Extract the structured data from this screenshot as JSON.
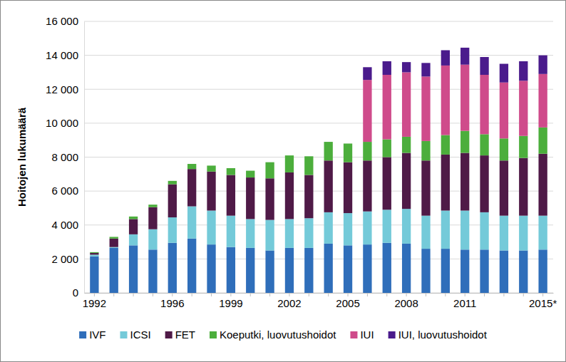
{
  "chart_data": {
    "type": "bar",
    "stacked": true,
    "grid": true,
    "legend": "bottom",
    "y_label": "Hoitojen lukumäärä",
    "categories": [
      "1992",
      null,
      null,
      null,
      "1996",
      null,
      null,
      "1999",
      null,
      null,
      "2002",
      null,
      null,
      "2005",
      null,
      null,
      "2008",
      null,
      null,
      "2011",
      null,
      null,
      null,
      "2015*"
    ],
    "ylim": [
      0,
      16000
    ],
    "yticks": [
      0,
      {
        "value": 2000,
        "label": "2 000"
      },
      {
        "value": 4000,
        "label": "4 000"
      },
      {
        "value": 6000,
        "label": "6 000"
      },
      {
        "value": 8000,
        "label": "8 000"
      },
      {
        "value": 10000,
        "label": "10 000"
      },
      {
        "value": 12000,
        "label": "12 000"
      },
      {
        "value": 14000,
        "label": "14 000"
      },
      {
        "value": 16000,
        "label": "16 000"
      }
    ],
    "series": [
      {
        "name": "IVF",
        "color": "#2f6eba",
        "values": [
          2150,
          2650,
          2800,
          2550,
          2950,
          3200,
          2850,
          2700,
          2650,
          2500,
          2650,
          2650,
          2900,
          2800,
          2850,
          2950,
          2900,
          2600,
          2600,
          2550,
          2550,
          2500,
          2500,
          2550
        ]
      },
      {
        "name": "ICSI",
        "color": "#74cad9",
        "values": [
          100,
          50,
          650,
          1200,
          1500,
          1900,
          2000,
          1850,
          1700,
          1800,
          1700,
          1750,
          1850,
          1900,
          1950,
          1950,
          2050,
          1950,
          2250,
          2300,
          2200,
          2050,
          2050,
          2000
        ]
      },
      {
        "name": "FET",
        "color": "#4f1a47",
        "values": [
          100,
          500,
          900,
          1300,
          1950,
          2200,
          2300,
          2400,
          2450,
          2450,
          2750,
          2550,
          3050,
          3000,
          3000,
          3100,
          3300,
          3250,
          3300,
          3400,
          3350,
          3250,
          3400,
          3650
        ]
      },
      {
        "name": "Koeputki, luovutushoidot",
        "color": "#4cae3c",
        "values": [
          50,
          100,
          150,
          150,
          200,
          300,
          350,
          400,
          400,
          950,
          1000,
          1100,
          1100,
          1100,
          1100,
          1050,
          950,
          1150,
          1150,
          1300,
          1250,
          1300,
          1300,
          1550
        ]
      },
      {
        "name": "IUI",
        "color": "#cf4b8b",
        "values": [
          null,
          null,
          null,
          null,
          null,
          null,
          null,
          null,
          null,
          null,
          null,
          null,
          null,
          null,
          3650,
          3800,
          3800,
          3800,
          4100,
          3900,
          3500,
          3300,
          3250,
          3150
        ]
      },
      {
        "name": "IUI, luovutushoidot",
        "color": "#4a1b8c",
        "values": [
          null,
          null,
          null,
          null,
          null,
          null,
          null,
          null,
          null,
          null,
          null,
          null,
          null,
          null,
          750,
          800,
          600,
          800,
          900,
          1000,
          1050,
          1100,
          1150,
          1100
        ]
      }
    ]
  }
}
